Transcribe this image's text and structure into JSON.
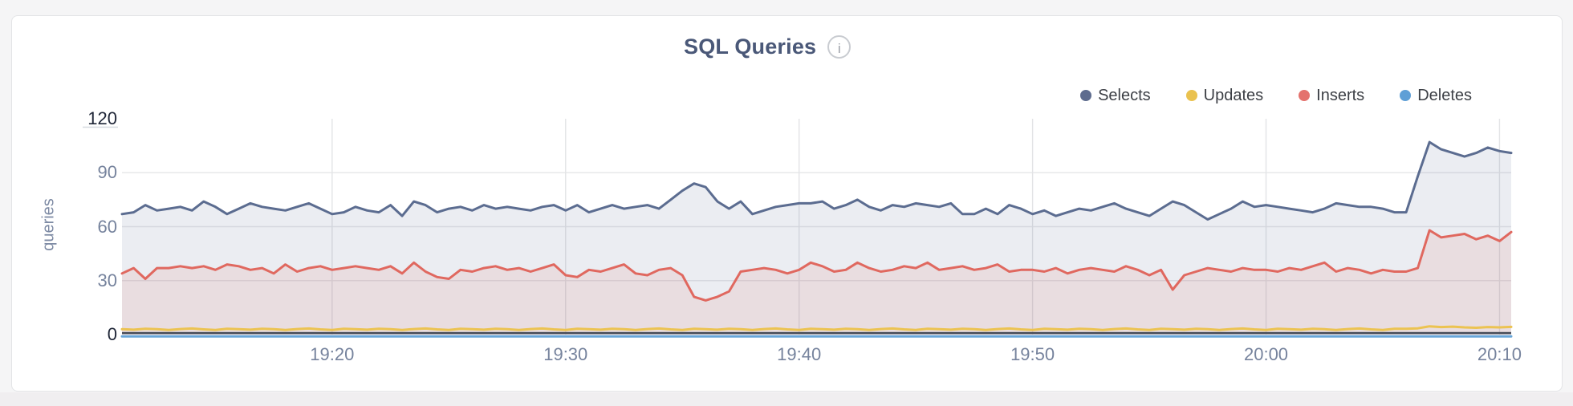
{
  "card": {
    "title": "SQL Queries",
    "info_icon_glyph": "i"
  },
  "legend": {
    "items": [
      {
        "label": "Selects",
        "color": "#5e6c8e"
      },
      {
        "label": "Updates",
        "color": "#eac24f"
      },
      {
        "label": "Inserts",
        "color": "#e4726d"
      },
      {
        "label": "Deletes",
        "color": "#5f9fd6"
      }
    ]
  },
  "axes": {
    "y_label": "queries",
    "y_ticks": [
      {
        "label": "120",
        "value": 120,
        "emphasized": true
      },
      {
        "label": "90",
        "value": 90,
        "emphasized": false
      },
      {
        "label": "60",
        "value": 60,
        "emphasized": false
      },
      {
        "label": "30",
        "value": 30,
        "emphasized": false
      },
      {
        "label": "0",
        "value": 0,
        "emphasized": true
      }
    ],
    "x_ticks": [
      {
        "label": "19:20",
        "index": 18
      },
      {
        "label": "19:30",
        "index": 38
      },
      {
        "label": "19:40",
        "index": 58
      },
      {
        "label": "19:50",
        "index": 78
      },
      {
        "label": "20:00",
        "index": 98
      },
      {
        "label": "20:10",
        "index": 118
      }
    ]
  },
  "colors": {
    "grid_vertical": "#e3e4e6",
    "grid_horizontal": "#e7e8ea",
    "axis_line": "#474c58",
    "minmax_tick": "#d6d9df"
  },
  "chart_data": {
    "type": "area",
    "title": "SQL Queries",
    "xlabel": "",
    "ylabel": "queries",
    "ylim": [
      0,
      120
    ],
    "grid": true,
    "legend_position": "top-right",
    "x_tick_labels": [
      "19:20",
      "19:30",
      "19:40",
      "19:50",
      "20:00",
      "20:10"
    ],
    "point_interval_minutes": 0.5,
    "series": [
      {
        "name": "Selects",
        "color": "#5b6c90",
        "fill": "rgba(91,108,144,0.12)",
        "values": [
          67,
          68,
          72,
          69,
          70,
          71,
          69,
          74,
          71,
          67,
          70,
          73,
          71,
          70,
          69,
          71,
          73,
          70,
          67,
          68,
          71,
          69,
          68,
          72,
          66,
          74,
          72,
          68,
          70,
          71,
          69,
          72,
          70,
          71,
          70,
          69,
          71,
          72,
          69,
          72,
          68,
          70,
          72,
          70,
          71,
          72,
          70,
          75,
          80,
          84,
          82,
          74,
          70,
          74,
          67,
          69,
          71,
          72,
          73,
          73,
          74,
          70,
          72,
          75,
          71,
          69,
          72,
          71,
          73,
          72,
          71,
          73,
          67,
          67,
          70,
          67,
          72,
          70,
          67,
          69,
          66,
          68,
          70,
          69,
          71,
          73,
          70,
          68,
          66,
          70,
          74,
          72,
          68,
          64,
          67,
          70,
          74,
          71,
          72,
          71,
          70,
          69,
          68,
          70,
          73,
          72,
          71,
          71,
          70,
          68,
          68,
          88,
          107,
          103,
          101,
          99,
          101,
          104,
          102,
          101
        ]
      },
      {
        "name": "Inserts",
        "color": "#e0685f",
        "fill": "rgba(224,106,99,0.12)",
        "values": [
          34,
          37,
          31,
          37,
          37,
          38,
          37,
          38,
          36,
          39,
          38,
          36,
          37,
          34,
          39,
          35,
          37,
          38,
          36,
          37,
          38,
          37,
          36,
          38,
          34,
          40,
          35,
          32,
          31,
          36,
          35,
          37,
          38,
          36,
          37,
          35,
          37,
          39,
          33,
          32,
          36,
          35,
          37,
          39,
          34,
          33,
          36,
          37,
          33,
          21,
          19,
          21,
          24,
          35,
          36,
          37,
          36,
          34,
          36,
          40,
          38,
          35,
          36,
          40,
          37,
          35,
          36,
          38,
          37,
          40,
          36,
          37,
          38,
          36,
          37,
          39,
          35,
          36,
          36,
          35,
          37,
          34,
          36,
          37,
          36,
          35,
          38,
          36,
          33,
          36,
          25,
          33,
          35,
          37,
          36,
          35,
          37,
          36,
          36,
          35,
          37,
          36,
          38,
          40,
          35,
          37,
          36,
          34,
          36,
          35,
          35,
          37,
          58,
          54,
          55,
          56,
          53,
          55,
          52,
          57
        ]
      },
      {
        "name": "Updates",
        "color": "#ecc351",
        "fill": "none",
        "values": [
          3,
          2.7,
          3.2,
          3,
          2.6,
          3.1,
          3.4,
          2.9,
          2.6,
          3.2,
          3,
          2.7,
          3.2,
          3,
          2.6,
          3.1,
          3.4,
          2.9,
          2.6,
          3.2,
          3,
          2.7,
          3.2,
          3,
          2.6,
          3.1,
          3.4,
          2.9,
          2.6,
          3.2,
          3,
          2.7,
          3.2,
          3,
          2.6,
          3.1,
          3.4,
          2.9,
          2.6,
          3.2,
          3,
          2.7,
          3.2,
          3,
          2.6,
          3.1,
          3.4,
          2.9,
          2.6,
          3.2,
          3,
          2.7,
          3.2,
          3,
          2.6,
          3.1,
          3.4,
          2.9,
          2.6,
          3.2,
          3,
          2.7,
          3.2,
          3,
          2.6,
          3.1,
          3.4,
          2.9,
          2.6,
          3.2,
          3,
          2.7,
          3.2,
          3,
          2.6,
          3.1,
          3.4,
          2.9,
          2.6,
          3.2,
          3,
          2.7,
          3.2,
          3,
          2.6,
          3.1,
          3.4,
          2.9,
          2.6,
          3.2,
          3,
          2.7,
          3.2,
          3,
          2.6,
          3.1,
          3.4,
          2.9,
          2.6,
          3.2,
          3,
          2.7,
          3.2,
          3,
          2.6,
          3.1,
          3.4,
          2.9,
          2.6,
          3.2,
          3.2,
          3.5,
          4.6,
          4.2,
          4.4,
          4,
          3.8,
          4.2,
          4,
          4.3
        ]
      },
      {
        "name": "Deletes",
        "color": "#68a5d8",
        "fill": "none",
        "values": [
          1,
          1,
          1,
          1,
          1,
          1,
          1,
          1,
          1,
          1,
          1,
          1,
          1,
          1,
          1,
          1,
          1,
          1,
          1,
          1,
          1,
          1,
          1,
          1,
          1,
          1,
          1,
          1,
          1,
          1,
          1,
          1,
          1,
          1,
          1,
          1,
          1,
          1,
          1,
          1,
          1,
          1,
          1,
          1,
          1,
          1,
          1,
          1,
          1,
          1,
          1,
          1,
          1,
          1,
          1,
          1,
          1,
          1,
          1,
          1,
          1,
          1,
          1,
          1,
          1,
          1,
          1,
          1,
          1,
          1,
          1,
          1,
          1,
          1,
          1,
          1,
          1,
          1,
          1,
          1,
          1,
          1,
          1,
          1,
          1,
          1,
          1,
          1,
          1,
          1,
          1,
          1,
          1,
          1,
          1,
          1,
          1,
          1,
          1,
          1,
          1,
          1,
          1,
          1,
          1,
          1,
          1,
          1,
          1,
          1,
          1,
          1,
          1,
          1,
          1,
          1,
          1,
          1,
          1,
          1
        ]
      }
    ]
  }
}
